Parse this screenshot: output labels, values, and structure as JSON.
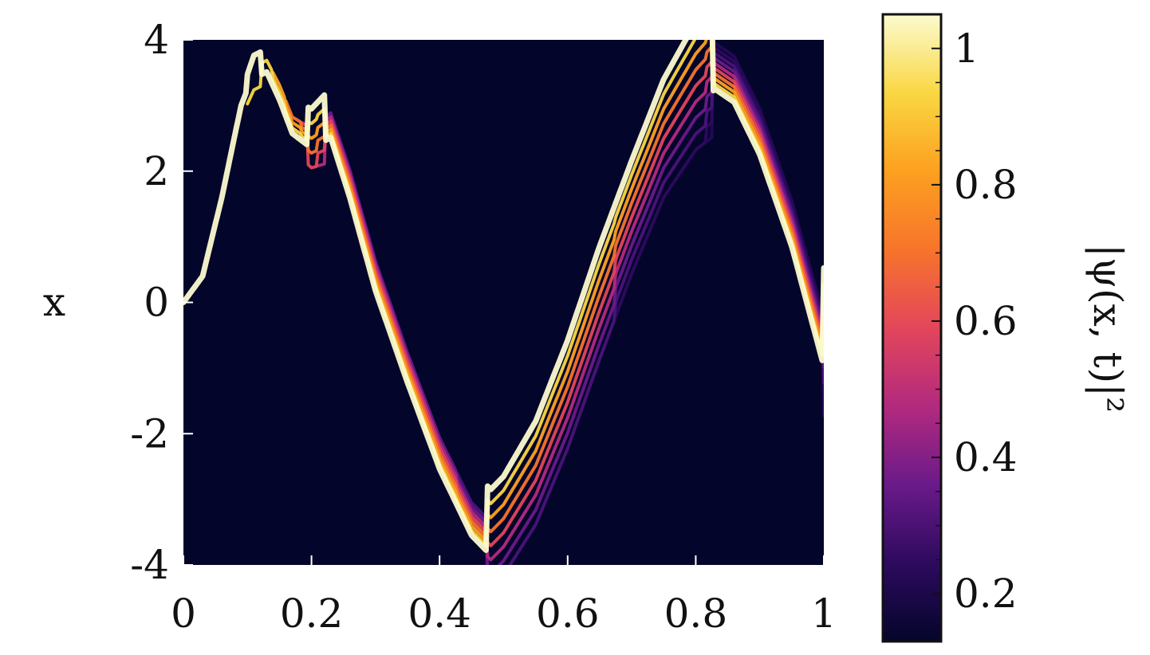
{
  "chart_data": {
    "type": "heatmap",
    "title": "",
    "xlabel": "",
    "ylabel": "x",
    "colorbar_label": "|ψ(x, t)|²",
    "xlim": [
      0,
      1
    ],
    "ylim": [
      -4,
      4
    ],
    "x_ticks": [
      0,
      0.2,
      0.4,
      0.6,
      0.8,
      1
    ],
    "x_tick_labels": [
      "0",
      "0.2",
      "0.4",
      "0.6",
      "0.8",
      "1"
    ],
    "y_ticks": [
      4,
      2,
      0,
      -2,
      -4
    ],
    "y_tick_labels": [
      "4",
      "2",
      "0",
      "-2",
      "-4"
    ],
    "colorbar_range": [
      0.13,
      1.05
    ],
    "colorbar_ticks": [
      1,
      0.8,
      0.6,
      0.4,
      0.2
    ],
    "colorbar_tick_labels": [
      "1",
      "0.8",
      "0.6",
      "0.4",
      "0.2"
    ],
    "colormap": [
      "#04052a",
      "#2d0a5e",
      "#6a1a8a",
      "#b32a7e",
      "#e3465b",
      "#f7742b",
      "#fda020",
      "#f9d743",
      "#fcfbd0"
    ],
    "background_color": "#04052a",
    "density_ridge": {
      "t": [
        0,
        0.03,
        0.06,
        0.09,
        0.11,
        0.13,
        0.15,
        0.17,
        0.2,
        0.23,
        0.26,
        0.3,
        0.35,
        0.4,
        0.45,
        0.48,
        0.5,
        0.55,
        0.6,
        0.65,
        0.7,
        0.75,
        0.8,
        0.83,
        0.86,
        0.9,
        0.95,
        1.0
      ],
      "x": [
        0.0,
        0.4,
        1.6,
        3.0,
        3.5,
        3.6,
        3.2,
        2.7,
        2.5,
        2.7,
        1.8,
        0.4,
        -1.0,
        -2.3,
        -3.3,
        -3.6,
        -3.4,
        -2.6,
        -1.4,
        0.0,
        1.3,
        2.5,
        3.3,
        3.6,
        3.4,
        2.6,
        1.2,
        -0.6
      ],
      "spread": [
        0.25,
        0.25,
        0.2,
        0.25,
        0.35,
        0.35,
        0.45,
        0.5,
        0.6,
        0.75,
        0.85,
        0.9,
        0.9,
        0.95,
        1.0,
        1.0,
        1.0,
        1.05,
        1.1,
        1.15,
        1.15,
        1.2,
        1.3,
        1.4,
        1.4,
        1.4,
        1.4,
        1.5
      ],
      "fringes": [
        1,
        1,
        1,
        1,
        2,
        2,
        3,
        4,
        5,
        7,
        7,
        7,
        7,
        7,
        8,
        8,
        8,
        8,
        8,
        8,
        9,
        9,
        9,
        10,
        10,
        10,
        10,
        10
      ]
    }
  }
}
